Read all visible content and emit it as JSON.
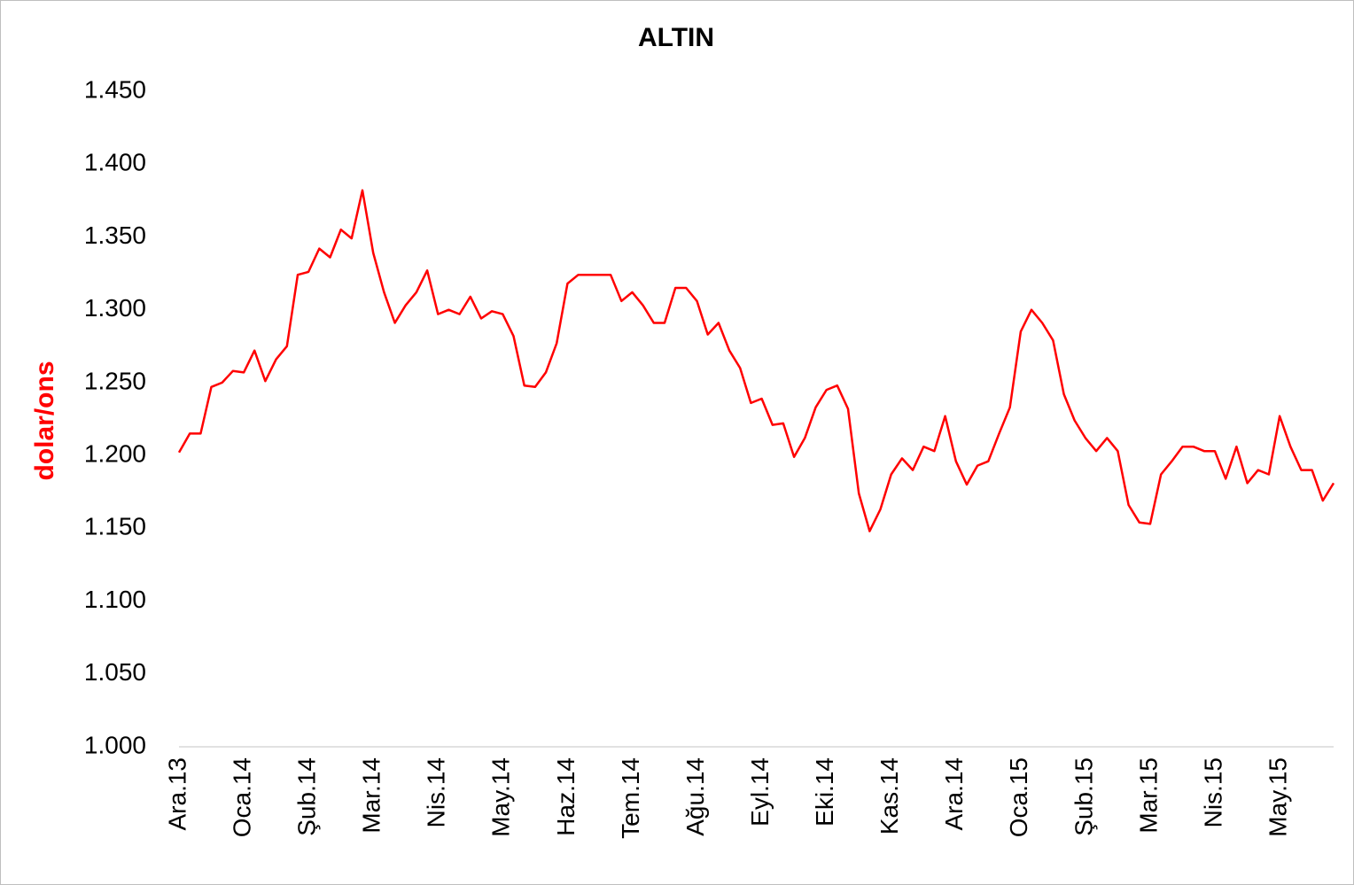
{
  "chart_data": {
    "type": "line",
    "title": "ALTIN",
    "y_label": "dolar/ons",
    "color": "#ff0000",
    "ylim": [
      1000,
      1450
    ],
    "yticks": [
      {
        "value": 1000,
        "label": "1.000"
      },
      {
        "value": 1050,
        "label": "1.050"
      },
      {
        "value": 1100,
        "label": "1.100"
      },
      {
        "value": 1150,
        "label": "1.150"
      },
      {
        "value": 1200,
        "label": "1.200"
      },
      {
        "value": 1250,
        "label": "1.250"
      },
      {
        "value": 1300,
        "label": "1.300"
      },
      {
        "value": 1350,
        "label": "1.350"
      },
      {
        "value": 1400,
        "label": "1.400"
      },
      {
        "value": 1450,
        "label": "1.450"
      }
    ],
    "categories": [
      "Ara.13",
      null,
      null,
      null,
      null,
      null,
      "Oca.14",
      null,
      null,
      null,
      null,
      null,
      "Şub.14",
      null,
      null,
      null,
      null,
      null,
      "Mar.14",
      null,
      null,
      null,
      null,
      null,
      "Nis.14",
      null,
      null,
      null,
      null,
      null,
      "May.14",
      null,
      null,
      null,
      null,
      null,
      "Haz.14",
      null,
      null,
      null,
      null,
      null,
      "Tem.14",
      null,
      null,
      null,
      null,
      null,
      "Ağu.14",
      null,
      null,
      null,
      null,
      null,
      "Eyl.14",
      null,
      null,
      null,
      null,
      null,
      "Eki.14",
      null,
      null,
      null,
      null,
      null,
      "Kas.14",
      null,
      null,
      null,
      null,
      null,
      "Ara.14",
      null,
      null,
      null,
      null,
      null,
      "Oca.15",
      null,
      null,
      null,
      null,
      null,
      "Şub.15",
      null,
      null,
      null,
      null,
      null,
      "Mar.15",
      null,
      null,
      null,
      null,
      null,
      "Nis.15",
      null,
      null,
      null,
      null,
      null,
      "May.15",
      null,
      null,
      null,
      null,
      null
    ],
    "values": [
      1202,
      1215,
      1215,
      1247,
      1250,
      1258,
      1257,
      1272,
      1251,
      1266,
      1275,
      1324,
      1326,
      1342,
      1336,
      1355,
      1349,
      1382,
      1339,
      1312,
      1291,
      1303,
      1312,
      1327,
      1297,
      1300,
      1297,
      1309,
      1294,
      1299,
      1297,
      1282,
      1248,
      1247,
      1257,
      1277,
      1318,
      1324,
      1324,
      1324,
      1324,
      1306,
      1312,
      1303,
      1291,
      1291,
      1315,
      1315,
      1306,
      1283,
      1291,
      1272,
      1260,
      1236,
      1239,
      1221,
      1222,
      1199,
      1212,
      1233,
      1245,
      1248,
      1232,
      1174,
      1148,
      1163,
      1187,
      1198,
      1190,
      1206,
      1203,
      1227,
      1196,
      1180,
      1193,
      1196,
      1215,
      1233,
      1285,
      1300,
      1291,
      1279,
      1242,
      1224,
      1212,
      1203,
      1212,
      1203,
      1166,
      1154,
      1153,
      1187,
      1196,
      1206,
      1206,
      1203,
      1203,
      1184,
      1206,
      1181,
      1190,
      1187,
      1227,
      1206,
      1190,
      1190,
      1169,
      1181
    ]
  }
}
